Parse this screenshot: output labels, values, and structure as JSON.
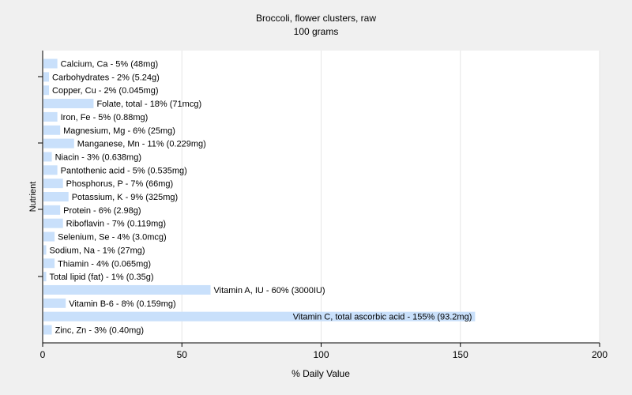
{
  "chart_data": {
    "type": "bar",
    "orientation": "horizontal",
    "title": "Broccoli, flower clusters, raw",
    "subtitle": "100 grams",
    "xlabel": "% Daily Value",
    "ylabel": "Nutrient",
    "xlim": [
      0,
      200
    ],
    "xticks": [
      0,
      50,
      100,
      150,
      200
    ],
    "grid": true,
    "bar_color": "#c9e0fb",
    "background_color": "#f0f0f0",
    "plot_background_color": "#ffffff",
    "grid_color": "#e6e6e6",
    "categories": [
      "Calcium, Ca",
      "Carbohydrates",
      "Copper, Cu",
      "Folate, total",
      "Iron, Fe",
      "Magnesium, Mg",
      "Manganese, Mn",
      "Niacin",
      "Pantothenic acid",
      "Phosphorus, P",
      "Potassium, K",
      "Protein",
      "Riboflavin",
      "Selenium, Se",
      "Sodium, Na",
      "Thiamin",
      "Total lipid (fat)",
      "Vitamin A, IU",
      "Vitamin B-6",
      "Vitamin C, total ascorbic acid",
      "Zinc, Zn"
    ],
    "values": [
      5,
      2,
      2,
      18,
      5,
      6,
      11,
      3,
      5,
      7,
      9,
      6,
      7,
      4,
      1,
      4,
      1,
      60,
      8,
      155,
      3
    ],
    "labels": [
      "Calcium, Ca - 5% (48mg)",
      "Carbohydrates - 2% (5.24g)",
      "Copper, Cu - 2% (0.045mg)",
      "Folate, total - 18% (71mcg)",
      "Iron, Fe - 5% (0.88mg)",
      "Magnesium, Mg - 6% (25mg)",
      "Manganese, Mn - 11% (0.229mg)",
      "Niacin - 3% (0.638mg)",
      "Pantothenic acid - 5% (0.535mg)",
      "Phosphorus, P - 7% (66mg)",
      "Potassium, K - 9% (325mg)",
      "Protein - 6% (2.98g)",
      "Riboflavin - 7% (0.119mg)",
      "Selenium, Se - 4% (3.0mcg)",
      "Sodium, Na - 1% (27mg)",
      "Thiamin - 4% (0.065mg)",
      "Total lipid (fat) - 1% (0.35g)",
      "Vitamin A, IU - 60% (3000IU)",
      "Vitamin B-6 - 8% (0.159mg)",
      "Vitamin C, total ascorbic acid - 155% (93.2mg)",
      "Zinc, Zn - 3% (0.40mg)"
    ]
  }
}
